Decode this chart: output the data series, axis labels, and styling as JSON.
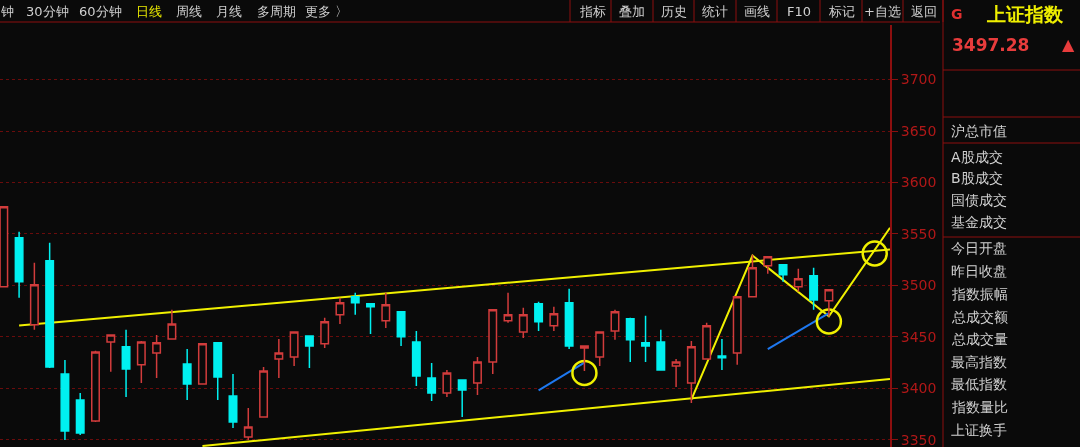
{
  "chart_data": {
    "type": "candlestick",
    "categories": [
      null,
      null,
      null,
      null,
      null,
      null,
      null,
      null,
      null,
      null,
      null,
      null,
      null,
      null,
      null,
      null,
      null,
      null,
      null,
      null,
      null,
      null,
      null,
      null,
      null,
      null,
      null,
      null,
      null,
      null,
      null,
      null,
      null,
      null,
      null,
      null,
      null,
      null,
      null,
      null,
      null,
      null,
      null,
      null,
      null,
      null,
      null,
      null,
      null,
      null,
      null,
      null,
      null,
      null,
      null,
      null,
      null,
      null,
      null
    ],
    "ohlc": [
      [
        3498.6,
        3576.5,
        3498.6,
        3576.5
      ],
      [
        3546.3,
        3552.1,
        3487.9,
        3503.5
      ],
      [
        3461.7,
        3522.0,
        3456.8,
        3500.6
      ],
      [
        3523.9,
        3541.4,
        3419.8,
        3420.8
      ],
      [
        3414.0,
        3427.6,
        3349.8,
        3358.5
      ],
      [
        3388.7,
        3395.5,
        3354.6,
        3356.6
      ],
      [
        3368.3,
        3436.4,
        3367.3,
        3435.4
      ],
      [
        3445.1,
        3451.9,
        3416.0,
        3451.9
      ],
      [
        3440.3,
        3456.8,
        3391.6,
        3418.9
      ],
      [
        3422.8,
        3446.1,
        3405.2,
        3445.1
      ],
      [
        3434.4,
        3451.9,
        3410.1,
        3444.2
      ],
      [
        3448.0,
        3476.3,
        3448.0,
        3462.6
      ],
      [
        3423.7,
        3438.3,
        3388.7,
        3404.3
      ],
      [
        3404.3,
        3443.2,
        3404.3,
        3443.2
      ],
      [
        3444.2,
        3444.2,
        3388.7,
        3411.1
      ],
      [
        3392.6,
        3414.0,
        3361.5,
        3367.3
      ],
      [
        3352.7,
        3380.9,
        3349.8,
        3362.4
      ],
      [
        3372.2,
        3420.8,
        3372.2,
        3416.9
      ],
      [
        3428.6,
        3448.0,
        3410.1,
        3434.4
      ],
      [
        3430.5,
        3454.8,
        3421.8,
        3454.8
      ],
      [
        3450.9,
        3450.9,
        3419.8,
        3441.2
      ],
      [
        3443.2,
        3468.5,
        3439.3,
        3464.6
      ],
      [
        3471.4,
        3488.0,
        3462.6,
        3483.1
      ],
      [
        3488.9,
        3492.8,
        3471.4,
        3483.1
      ],
      [
        3482.1,
        3482.1,
        3452.9,
        3479.2
      ],
      [
        3465.6,
        3492.8,
        3458.7,
        3481.1
      ],
      [
        3474.3,
        3474.3,
        3441.2,
        3450.0
      ],
      [
        3445.1,
        3455.8,
        3402.3,
        3412.0
      ],
      [
        3410.1,
        3424.7,
        3387.7,
        3395.5
      ],
      [
        3395.5,
        3417.9,
        3391.6,
        3414.9
      ],
      [
        3408.2,
        3408.2,
        3372.2,
        3398.4
      ],
      [
        3405.2,
        3430.5,
        3393.6,
        3425.7
      ],
      [
        3425.7,
        3476.3,
        3414.0,
        3476.3
      ],
      [
        3465.6,
        3492.8,
        3463.6,
        3471.4
      ],
      [
        3454.8,
        3478.2,
        3449.0,
        3471.4
      ],
      [
        3482.1,
        3484.0,
        3455.8,
        3464.6
      ],
      [
        3460.7,
        3479.2,
        3455.8,
        3472.4
      ],
      [
        3483.1,
        3496.7,
        3438.3,
        3441.2
      ],
      [
        3439.3,
        3441.2,
        3416.9,
        3441.2
      ],
      [
        3430.5,
        3454.8,
        3421.8,
        3454.8
      ],
      [
        3455.8,
        3476.3,
        3447.1,
        3474.3
      ],
      [
        3467.5,
        3468.5,
        3425.7,
        3447.1
      ],
      [
        3444.2,
        3470.4,
        3425.7,
        3441.2
      ],
      [
        3445.1,
        3456.8,
        3417.9,
        3417.9
      ],
      [
        3421.8,
        3428.6,
        3401.3,
        3425.7
      ],
      [
        3405.2,
        3446.1,
        3385.8,
        3440.3
      ],
      [
        3428.6,
        3463.6,
        3428.6,
        3460.7
      ],
      [
        3431.5,
        3448.0,
        3417.9,
        3429.6
      ],
      [
        3434.4,
        3488.9,
        3422.8,
        3488.9
      ],
      [
        3488.9,
        3529.8,
        3488.9,
        3517.1
      ],
      [
        3519.1,
        3527.8,
        3511.3,
        3527.8
      ],
      [
        3520.0,
        3520.0,
        3503.5,
        3510.3
      ],
      [
        3498.6,
        3516.1,
        3493.8,
        3506.4
      ],
      [
        3509.3,
        3517.1,
        3476.3,
        3485.9
      ],
      [
        3485.0,
        3495.7,
        3469.5,
        3495.7
      ],
      null,
      null,
      null,
      null
    ],
    "colors": [
      "#d23c3c",
      "#00f0f0",
      "#d23c3c",
      "#00f0f0",
      "#00f0f0",
      "#00f0f0",
      "#d23c3c",
      "#d23c3c",
      "#00f0f0",
      "#d23c3c",
      "#d23c3c",
      "#d23c3c",
      "#00f0f0",
      "#d23c3c",
      "#00f0f0",
      "#00f0f0",
      "#d23c3c",
      "#d23c3c",
      "#d23c3c",
      "#d23c3c",
      "#00f0f0",
      "#d23c3c",
      "#d23c3c",
      "#00f0f0",
      "#00f0f0",
      "#d23c3c",
      "#00f0f0",
      "#00f0f0",
      "#00f0f0",
      "#d23c3c",
      "#00f0f0",
      "#d23c3c",
      "#d23c3c",
      "#d23c3c",
      "#d23c3c",
      "#00f0f0",
      "#d23c3c",
      "#00f0f0",
      "#d23c3c",
      "#d23c3c",
      "#d23c3c",
      "#00f0f0",
      "#00f0f0",
      "#00f0f0",
      "#d23c3c",
      "#d23c3c",
      "#d23c3c",
      "#00f0f0",
      "#d23c3c",
      "#d23c3c",
      "#d23c3c",
      "#00f0f0",
      "#d23c3c",
      "#00f0f0",
      "#d23c3c",
      null,
      null,
      null,
      null
    ],
    "series": [
      {
        "type": "line",
        "color": "#f0f000",
        "line_style": "solid",
        "values": [
          null,
          3461,
          null,
          null,
          null,
          null,
          null,
          null,
          null,
          null,
          null,
          null,
          null,
          null,
          null,
          null,
          null,
          null,
          null,
          null,
          null,
          null,
          null,
          null,
          null,
          null,
          null,
          null,
          null,
          null,
          null,
          null,
          null,
          null,
          null,
          null,
          null,
          null,
          null,
          null,
          null,
          null,
          null,
          null,
          null,
          null,
          null,
          null,
          null,
          null,
          null,
          null,
          null,
          null,
          null,
          null,
          null,
          null,
          3535
        ]
      },
      {
        "type": "line",
        "color": "#f0f000",
        "line_style": "solid",
        "values": [
          null,
          null,
          null,
          null,
          null,
          null,
          null,
          null,
          null,
          null,
          null,
          null,
          null,
          3344,
          null,
          null,
          null,
          null,
          null,
          null,
          null,
          null,
          null,
          null,
          null,
          null,
          null,
          null,
          null,
          null,
          null,
          null,
          null,
          null,
          null,
          null,
          null,
          null,
          null,
          null,
          null,
          null,
          null,
          null,
          null,
          null,
          null,
          null,
          null,
          null,
          null,
          null,
          null,
          null,
          null,
          null,
          null,
          null,
          3409
        ]
      },
      {
        "type": "line",
        "color": "#f0f000",
        "line_style": "solid",
        "values": [
          null,
          null,
          null,
          null,
          null,
          null,
          null,
          null,
          null,
          null,
          null,
          null,
          null,
          null,
          null,
          null,
          null,
          null,
          null,
          null,
          null,
          null,
          null,
          null,
          null,
          null,
          null,
          null,
          null,
          null,
          null,
          null,
          null,
          null,
          null,
          null,
          null,
          null,
          null,
          null,
          null,
          null,
          null,
          null,
          null,
          3389,
          null,
          null,
          null,
          3529,
          null,
          null,
          null,
          null,
          3470,
          null,
          null,
          null,
          3556
        ]
      },
      {
        "type": "line",
        "color": "#1e78f0",
        "line_style": "solid",
        "values": [
          null,
          null,
          null,
          null,
          null,
          null,
          null,
          null,
          null,
          null,
          null,
          null,
          null,
          null,
          null,
          null,
          null,
          null,
          null,
          null,
          null,
          null,
          null,
          null,
          null,
          null,
          null,
          null,
          null,
          null,
          null,
          null,
          null,
          null,
          null,
          3398,
          null,
          null,
          3425,
          null,
          null,
          null,
          null,
          null,
          null,
          null,
          null,
          null,
          null,
          null,
          null,
          null,
          null,
          null,
          null,
          null,
          null,
          null,
          null
        ]
      },
      {
        "type": "line",
        "color": "#1e78f0",
        "line_style": "solid",
        "values": [
          null,
          null,
          null,
          null,
          null,
          null,
          null,
          null,
          null,
          null,
          null,
          null,
          null,
          null,
          null,
          null,
          null,
          null,
          null,
          null,
          null,
          null,
          null,
          null,
          null,
          null,
          null,
          null,
          null,
          null,
          null,
          null,
          null,
          null,
          null,
          null,
          null,
          null,
          null,
          null,
          null,
          null,
          null,
          null,
          null,
          null,
          null,
          null,
          null,
          null,
          3438,
          null,
          null,
          null,
          3473,
          null,
          null,
          null,
          null
        ]
      },
      {
        "type": "scatter",
        "color": "#f0f000",
        "marker": "circle",
        "values": [
          null,
          null,
          null,
          null,
          null,
          null,
          null,
          null,
          null,
          null,
          null,
          null,
          null,
          null,
          null,
          null,
          null,
          null,
          null,
          null,
          null,
          null,
          null,
          null,
          null,
          null,
          null,
          null,
          null,
          null,
          null,
          null,
          null,
          null,
          null,
          null,
          null,
          null,
          3415,
          null,
          null,
          null,
          null,
          null,
          null,
          null,
          null,
          null,
          null,
          null,
          null,
          null,
          null,
          null,
          3465,
          null,
          null,
          3531,
          null
        ]
      }
    ],
    "ylim": [
      3343,
      3753
    ],
    "yticks": [
      3350,
      3400,
      3450,
      3500,
      3550,
      3600,
      3650,
      3700
    ],
    "grid": "y",
    "tick_labels": "y",
    "annotations": [
      "钟",
      "30分钟",
      "60分钟",
      "日线",
      "周线",
      "月线",
      "多周期",
      "更多 〉",
      "指标",
      "叠加",
      "历史",
      "统计",
      "画线",
      "F10",
      "标记",
      "+自选",
      "返回",
      "G",
      "上证指数",
      "3497.28",
      "▲",
      "沪总市值",
      "A股成交",
      "B股成交",
      "国债成交",
      "基金成交",
      "今日开盘",
      "昨日收盘",
      "指数振幅",
      "总成交额",
      "总成交量",
      "最高指数",
      "最低指数",
      "指数量比",
      "上证换手"
    ]
  }
}
